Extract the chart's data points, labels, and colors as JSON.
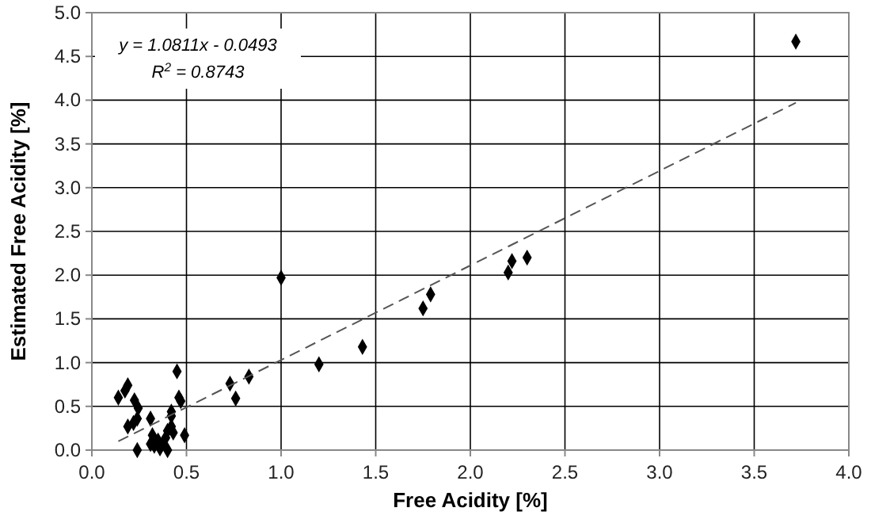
{
  "chart_data": {
    "type": "scatter",
    "xlabel": "Free Acidity [%]",
    "ylabel": "Estimated Free Acidity [%]",
    "annotations": [
      "y = 1.0811x - 0.0493",
      "R$^{2}$ = 0.8743"
    ],
    "xlim": [
      0,
      4
    ],
    "ylim": [
      0,
      5
    ],
    "xticks": [
      {
        "value": 0,
        "label": "0.0"
      },
      {
        "value": 0.5,
        "label": "0.5"
      },
      {
        "value": 1,
        "label": "1.0"
      },
      {
        "value": 1.5,
        "label": "1.5"
      },
      {
        "value": 2,
        "label": "2.0"
      },
      {
        "value": 2.5,
        "label": "2.5"
      },
      {
        "value": 3,
        "label": "3.0"
      },
      {
        "value": 3.5,
        "label": "3.5"
      },
      {
        "value": 4,
        "label": "4.0"
      }
    ],
    "yticks": [
      {
        "value": 0,
        "label": "0.0"
      },
      {
        "value": 0.5,
        "label": "0.5"
      },
      {
        "value": 1,
        "label": "1.0"
      },
      {
        "value": 1.5,
        "label": "1.5"
      },
      {
        "value": 2,
        "label": "2.0"
      },
      {
        "value": 2.5,
        "label": "2.5"
      },
      {
        "value": 3,
        "label": "3.0"
      },
      {
        "value": 3.5,
        "label": "3.5"
      },
      {
        "value": 4,
        "label": "4.0"
      },
      {
        "value": 4.5,
        "label": "4.5"
      },
      {
        "value": 5,
        "label": "5.0"
      }
    ],
    "grid": true,
    "marker": "diamond",
    "series": [
      {
        "color": "#000000",
        "x": [
          0.14,
          0.175,
          0.19,
          0.225,
          0.245,
          0.19,
          0.22,
          0.24,
          0.31,
          0.24,
          0.32,
          0.31,
          0.33,
          0.35,
          0.36,
          0.375,
          0.39,
          0.4,
          0.42,
          0.42,
          0.42,
          0.43,
          0.4,
          0.45,
          0.46,
          0.47,
          0.49,
          0.73,
          0.76,
          0.83,
          1.2,
          1.43,
          1.0,
          1.75,
          1.79,
          2.2,
          2.22,
          2.3,
          3.72
        ],
        "values": [
          0.6,
          0.68,
          0.74,
          0.57,
          0.48,
          0.27,
          0.31,
          0.36,
          0.36,
          0.0,
          0.17,
          0.07,
          0.05,
          0.11,
          0.02,
          0.08,
          0.14,
          0.22,
          0.27,
          0.44,
          0.39,
          0.2,
          0.0,
          0.9,
          0.6,
          0.56,
          0.17,
          0.76,
          0.59,
          0.84,
          0.98,
          1.18,
          1.97,
          1.62,
          1.78,
          2.03,
          2.16,
          2.2,
          4.67
        ]
      },
      {
        "type": "line",
        "color": "#555555",
        "line_style": "dashed",
        "marker": "none",
        "x": [
          0.14,
          3.72
        ],
        "values": [
          0.1,
          3.97
        ]
      }
    ]
  }
}
